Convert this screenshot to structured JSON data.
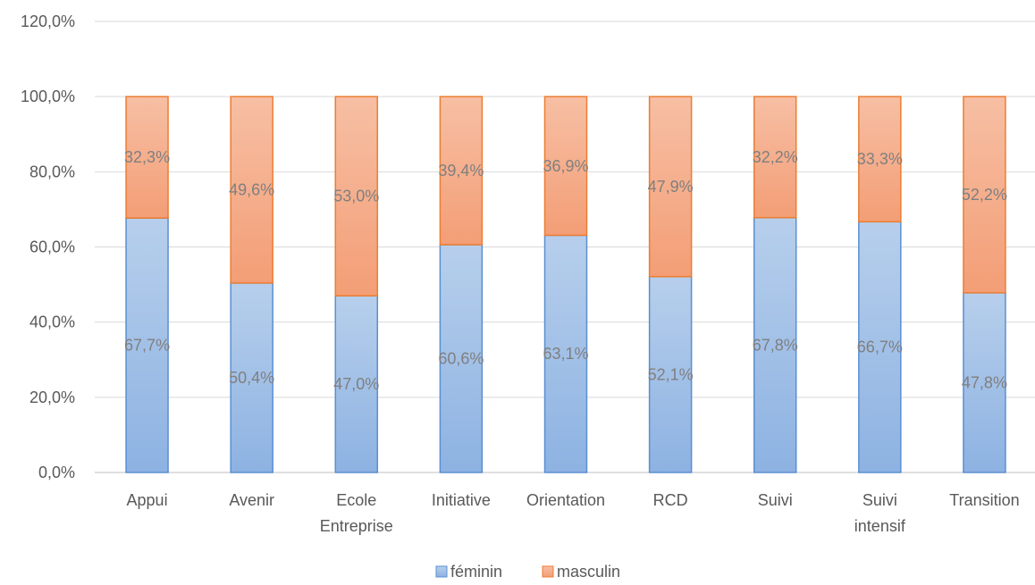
{
  "chart_data": {
    "type": "bar",
    "stacked": true,
    "categories": [
      [
        "Appui"
      ],
      [
        "Avenir"
      ],
      [
        "Ecole",
        "Entreprise"
      ],
      [
        "Initiative"
      ],
      [
        "Orientation"
      ],
      [
        "RCD"
      ],
      [
        "Suivi"
      ],
      [
        "Suivi",
        "intensif"
      ],
      [
        "Transition"
      ]
    ],
    "series": [
      {
        "name": "féminin",
        "color": "#8fb4e3",
        "values": [
          67.7,
          50.4,
          47.0,
          60.6,
          63.1,
          52.1,
          67.8,
          66.7,
          47.8
        ],
        "labels": [
          "67,7%",
          "50,4%",
          "47,0%",
          "60,6%",
          "63,1%",
          "52,1%",
          "67,8%",
          "66,7%",
          "47,8%"
        ]
      },
      {
        "name": "masculin",
        "color": "#f4a07a",
        "values": [
          32.3,
          49.6,
          53.0,
          39.4,
          36.9,
          47.9,
          32.2,
          33.3,
          52.2
        ],
        "labels": [
          "32,3%",
          "49,6%",
          "53,0%",
          "39,4%",
          "36,9%",
          "47,9%",
          "32,2%",
          "33,3%",
          "52,2%"
        ]
      }
    ],
    "yticks": [
      0,
      20,
      40,
      60,
      80,
      100,
      120
    ],
    "ytick_labels": [
      "0,0%",
      "20,0%",
      "40,0%",
      "60,0%",
      "80,0%",
      "100,0%",
      "120,0%"
    ],
    "ylim": [
      0,
      120
    ],
    "grid": true,
    "legend_position": "bottom",
    "title": "",
    "xlabel": "",
    "ylabel": ""
  }
}
